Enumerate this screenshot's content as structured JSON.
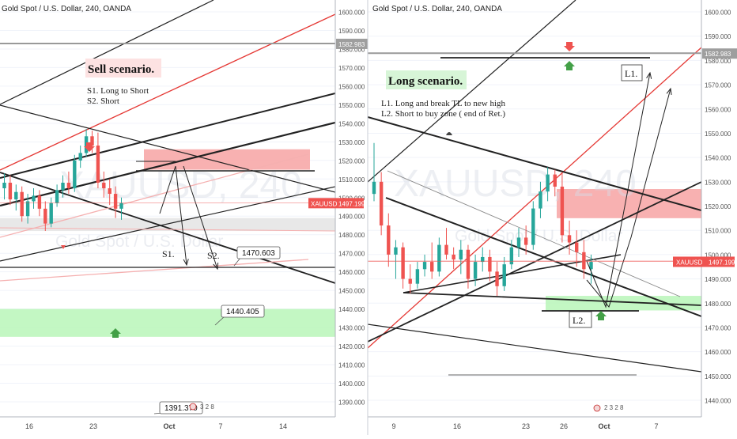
{
  "chart_data": [
    {
      "type": "candlestick",
      "title": "Gold Spot / U.S. Dollar, 240, OANDA",
      "watermark_symbol": "XAUUSD, 240",
      "watermark_name": "Gold Spot / U.S. Dollar",
      "yticks": [
        "1600.000",
        "1590.000",
        "1580.000",
        "1570.000",
        "1560.000",
        "1550.000",
        "1540.000",
        "1530.000",
        "1520.000",
        "1510.000",
        "1500.000",
        "1490.000",
        "1480.000",
        "1470.000",
        "1460.000",
        "1450.000",
        "1440.000",
        "1430.000",
        "1420.000",
        "1410.000",
        "1400.000",
        "1390.000"
      ],
      "ylim": [
        1385,
        1605
      ],
      "xticks": [
        "16",
        "23",
        "Oct",
        "7",
        "14"
      ],
      "price_tag": {
        "label": "XAUUSD",
        "value": "1497.199",
        "price": 1497.199
      },
      "level_tag": {
        "value": "1582.983",
        "price": 1582.983
      },
      "scenario_title": "Sell scenario.",
      "notes": [
        "S1. Long to Short",
        "S2. Short"
      ],
      "path_labels": [
        "S1.",
        "S2."
      ],
      "callouts": [
        {
          "value": "1470.603",
          "price": 1470.603
        },
        {
          "value": "1440.405",
          "price": 1440.405
        },
        {
          "value": "1391.370",
          "price": 1391.37
        }
      ],
      "event_digits": "3 2 8",
      "colors": {
        "up": "#26a69a",
        "down": "#ef5350",
        "supply_zone": "#f7a8a8",
        "demand_zone": "#b9f6b9",
        "trendline_red": "#e53935"
      },
      "series": [
        {
          "x": "Sep 13",
          "open": 1505,
          "high": 1513,
          "low": 1499,
          "close": 1508
        },
        {
          "x": "Sep 13",
          "open": 1508,
          "high": 1512,
          "low": 1496,
          "close": 1499
        },
        {
          "x": "Sep 16",
          "open": 1499,
          "high": 1507,
          "low": 1493,
          "close": 1503
        },
        {
          "x": "Sep 16",
          "open": 1503,
          "high": 1506,
          "low": 1487,
          "close": 1490
        },
        {
          "x": "Sep 17",
          "open": 1490,
          "high": 1502,
          "low": 1486,
          "close": 1498
        },
        {
          "x": "Sep 17",
          "open": 1498,
          "high": 1505,
          "low": 1494,
          "close": 1501
        },
        {
          "x": "Sep 18",
          "open": 1501,
          "high": 1504,
          "low": 1490,
          "close": 1494
        },
        {
          "x": "Sep 18",
          "open": 1494,
          "high": 1498,
          "low": 1482,
          "close": 1486
        },
        {
          "x": "Sep 19",
          "open": 1486,
          "high": 1500,
          "low": 1484,
          "close": 1497
        },
        {
          "x": "Sep 19",
          "open": 1497,
          "high": 1507,
          "low": 1495,
          "close": 1504
        },
        {
          "x": "Sep 20",
          "open": 1504,
          "high": 1512,
          "low": 1500,
          "close": 1508
        },
        {
          "x": "Sep 20",
          "open": 1508,
          "high": 1514,
          "low": 1502,
          "close": 1505
        },
        {
          "x": "Sep 23",
          "open": 1505,
          "high": 1523,
          "low": 1503,
          "close": 1520
        },
        {
          "x": "Sep 23",
          "open": 1520,
          "high": 1528,
          "low": 1516,
          "close": 1524
        },
        {
          "x": "Sep 24",
          "open": 1524,
          "high": 1537,
          "low": 1522,
          "close": 1533
        },
        {
          "x": "Sep 24",
          "open": 1533,
          "high": 1536,
          "low": 1524,
          "close": 1528
        },
        {
          "x": "Sep 25",
          "open": 1528,
          "high": 1535,
          "low": 1505,
          "close": 1508
        },
        {
          "x": "Sep 25",
          "open": 1508,
          "high": 1514,
          "low": 1500,
          "close": 1505
        },
        {
          "x": "Sep 26",
          "open": 1505,
          "high": 1510,
          "low": 1496,
          "close": 1502
        },
        {
          "x": "Sep 26",
          "open": 1502,
          "high": 1506,
          "low": 1489,
          "close": 1494
        },
        {
          "x": "Sep 27",
          "open": 1494,
          "high": 1500,
          "low": 1488,
          "close": 1497
        }
      ]
    },
    {
      "type": "candlestick",
      "title": "Gold Spot / U.S. Dollar, 240, OANDA",
      "watermark_symbol": "XAUUSD, 240",
      "watermark_name": "Gold Spot / U.S. Dollar",
      "yticks": [
        "1600.000",
        "1590.000",
        "1580.000",
        "1570.000",
        "1560.000",
        "1550.000",
        "1540.000",
        "1530.000",
        "1520.000",
        "1510.000",
        "1500.000",
        "1490.000",
        "1480.000",
        "1470.000",
        "1460.000",
        "1450.000",
        "1440.000"
      ],
      "ylim": [
        1435,
        1605
      ],
      "xticks": [
        "9",
        "16",
        "23",
        "26",
        "Oct",
        "7"
      ],
      "price_tag": {
        "label": "XAUUSD",
        "value": "1497.199",
        "price": 1497.199
      },
      "level_tag": {
        "value": "1582.983",
        "price": 1582.983
      },
      "scenario_title": "Long scenario.",
      "notes": [
        "L1. Long and break TL to new high",
        "L2. Short  to buy zone ( end of Ret.)"
      ],
      "path_labels": [
        "L1.",
        "L2."
      ],
      "event_digits": "2 3 2 8",
      "colors": {
        "up": "#26a69a",
        "down": "#ef5350",
        "supply_zone": "#f7a8a8",
        "demand_zone": "#b9f6b9",
        "trendline_red": "#e53935"
      },
      "series": [
        {
          "x": "Sep 6",
          "open": 1525,
          "high": 1546,
          "low": 1522,
          "close": 1530
        },
        {
          "x": "Sep 6",
          "open": 1530,
          "high": 1534,
          "low": 1508,
          "close": 1512
        },
        {
          "x": "Sep 9",
          "open": 1512,
          "high": 1517,
          "low": 1495,
          "close": 1500
        },
        {
          "x": "Sep 9",
          "open": 1500,
          "high": 1506,
          "low": 1490,
          "close": 1503
        },
        {
          "x": "Sep 10",
          "open": 1503,
          "high": 1505,
          "low": 1486,
          "close": 1490
        },
        {
          "x": "Sep 10",
          "open": 1490,
          "high": 1496,
          "low": 1484,
          "close": 1488
        },
        {
          "x": "Sep 11",
          "open": 1488,
          "high": 1497,
          "low": 1486,
          "close": 1494
        },
        {
          "x": "Sep 11",
          "open": 1494,
          "high": 1500,
          "low": 1491,
          "close": 1497
        },
        {
          "x": "Sep 12",
          "open": 1497,
          "high": 1505,
          "low": 1490,
          "close": 1493
        },
        {
          "x": "Sep 12",
          "open": 1493,
          "high": 1507,
          "low": 1491,
          "close": 1504
        },
        {
          "x": "Sep 13",
          "open": 1504,
          "high": 1511,
          "low": 1498,
          "close": 1500
        },
        {
          "x": "Sep 13",
          "open": 1500,
          "high": 1503,
          "low": 1494,
          "close": 1498
        },
        {
          "x": "Sep 16",
          "open": 1498,
          "high": 1506,
          "low": 1492,
          "close": 1502
        },
        {
          "x": "Sep 16",
          "open": 1502,
          "high": 1504,
          "low": 1486,
          "close": 1490
        },
        {
          "x": "Sep 17",
          "open": 1490,
          "high": 1500,
          "low": 1487,
          "close": 1497
        },
        {
          "x": "Sep 17",
          "open": 1497,
          "high": 1503,
          "low": 1493,
          "close": 1499
        },
        {
          "x": "Sep 18",
          "open": 1499,
          "high": 1502,
          "low": 1489,
          "close": 1493
        },
        {
          "x": "Sep 18",
          "open": 1493,
          "high": 1497,
          "low": 1483,
          "close": 1487
        },
        {
          "x": "Sep 19",
          "open": 1487,
          "high": 1499,
          "low": 1485,
          "close": 1496
        },
        {
          "x": "Sep 19",
          "open": 1496,
          "high": 1506,
          "low": 1494,
          "close": 1503
        },
        {
          "x": "Sep 20",
          "open": 1503,
          "high": 1511,
          "low": 1499,
          "close": 1507
        },
        {
          "x": "Sep 20",
          "open": 1507,
          "high": 1512,
          "low": 1500,
          "close": 1504
        },
        {
          "x": "Sep 23",
          "open": 1504,
          "high": 1522,
          "low": 1502,
          "close": 1519
        },
        {
          "x": "Sep 23",
          "open": 1519,
          "high": 1530,
          "low": 1515,
          "close": 1526
        },
        {
          "x": "Sep 24",
          "open": 1526,
          "high": 1536,
          "low": 1522,
          "close": 1533
        },
        {
          "x": "Sep 24",
          "open": 1533,
          "high": 1535,
          "low": 1524,
          "close": 1528
        },
        {
          "x": "Sep 25",
          "open": 1528,
          "high": 1534,
          "low": 1505,
          "close": 1508
        },
        {
          "x": "Sep 25",
          "open": 1508,
          "high": 1514,
          "low": 1500,
          "close": 1505
        },
        {
          "x": "Sep 26",
          "open": 1505,
          "high": 1510,
          "low": 1495,
          "close": 1501
        },
        {
          "x": "Sep 26",
          "open": 1501,
          "high": 1506,
          "low": 1490,
          "close": 1494
        },
        {
          "x": "Sep 27",
          "open": 1494,
          "high": 1500,
          "low": 1488,
          "close": 1497
        }
      ]
    }
  ]
}
